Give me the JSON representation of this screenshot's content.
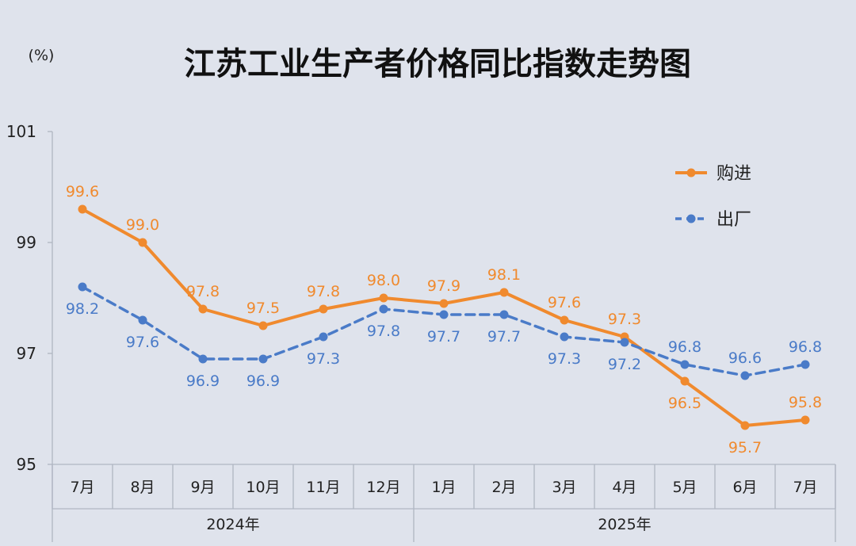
{
  "chart_data": {
    "type": "line",
    "title": "江苏工业生产者价格同比指数走势图",
    "unit": "(%)",
    "categories": [
      "7月",
      "8月",
      "9月",
      "10月",
      "11月",
      "12月",
      "1月",
      "2月",
      "3月",
      "4月",
      "5月",
      "6月",
      "7月"
    ],
    "year_groups": [
      {
        "label": "2024年",
        "count": 6
      },
      {
        "label": "2025年",
        "count": 7
      }
    ],
    "series": [
      {
        "name": "购进",
        "color": "#f08a2e",
        "style": "solid",
        "values": [
          99.6,
          99.0,
          97.8,
          97.5,
          97.8,
          98.0,
          97.9,
          98.1,
          97.6,
          97.3,
          96.5,
          95.7,
          95.8
        ],
        "labels": [
          "99.6",
          "99.0",
          "97.8",
          "97.5",
          "97.8",
          "98.0",
          "97.9",
          "98.1",
          "97.6",
          "97.3",
          "96.5",
          "95.7",
          "95.8"
        ]
      },
      {
        "name": "出厂",
        "color": "#4a7bc8",
        "style": "dashed",
        "values": [
          98.2,
          97.6,
          96.9,
          96.9,
          97.3,
          97.8,
          97.7,
          97.7,
          97.3,
          97.2,
          96.8,
          96.6,
          96.8
        ],
        "labels": [
          "98.2",
          "97.6",
          "96.9",
          "96.9",
          "97.3",
          "97.8",
          "97.7",
          "97.7",
          "97.3",
          "97.2",
          "96.8",
          "96.6",
          "96.8"
        ]
      }
    ],
    "yticks": [
      "95",
      "97",
      "99",
      "101"
    ],
    "ylim": [
      95,
      101
    ],
    "legend_position": "top-right",
    "grid": false
  }
}
